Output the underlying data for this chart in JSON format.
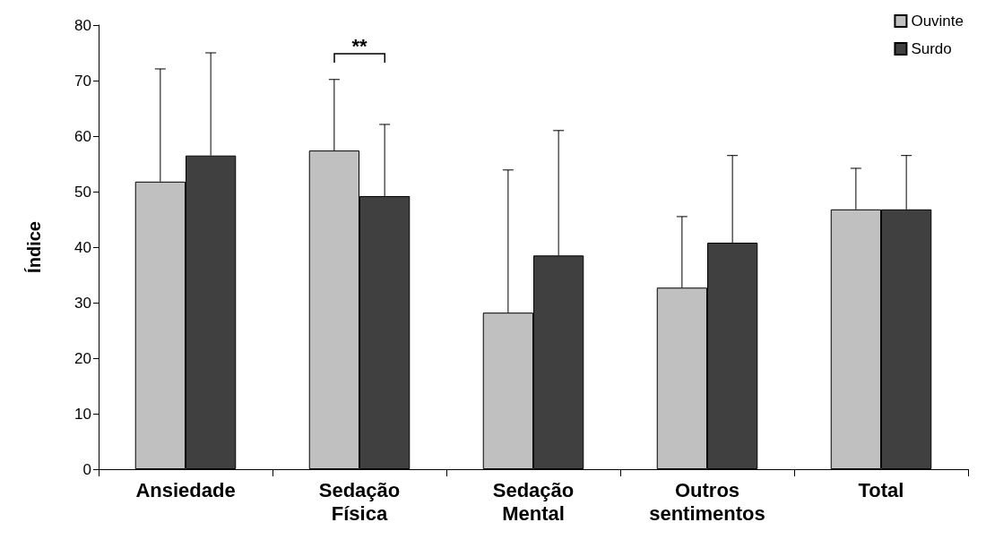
{
  "chart_data": {
    "type": "bar",
    "ylabel": "Índice",
    "categories": [
      "Ansiedade",
      "Sedação\nFísica",
      "Sedação\nMental",
      "Outros\nsentimentos",
      "Total"
    ],
    "series": [
      {
        "name": "Ouvinte",
        "color": "#c0c0c0",
        "values": [
          51.8,
          57.4,
          28.2,
          32.7,
          46.8
        ],
        "errors": [
          [
            51.8,
            72.1
          ],
          [
            57.4,
            70.2
          ],
          [
            28.2,
            53.9
          ],
          [
            32.7,
            45.5
          ],
          [
            46.8,
            54.2
          ]
        ]
      },
      {
        "name": "Surdo",
        "color": "#404040",
        "values": [
          56.5,
          49.2,
          38.5,
          40.8,
          46.8
        ],
        "errors": [
          [
            56.5,
            75
          ],
          [
            49.2,
            62.1
          ],
          [
            38.5,
            61
          ],
          [
            40.8,
            56.5
          ],
          [
            46.8,
            56.5
          ]
        ]
      }
    ],
    "ylim": [
      0,
      80
    ],
    "yticks": [
      0,
      10,
      20,
      30,
      40,
      50,
      60,
      70,
      80
    ],
    "grid": false,
    "legend": "top right",
    "annotations": [
      "**"
    ]
  }
}
